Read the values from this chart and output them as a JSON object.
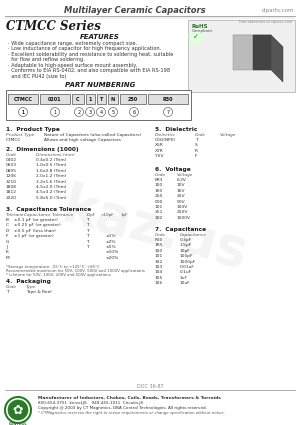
{
  "title": "Multilayer Ceramic Capacitors",
  "website": "cIparts.com",
  "series": "CTMCC Series",
  "features_title": "FEATURES",
  "features": [
    "Wide capacitance range, extremely compact size.",
    "Low inductance of capacitor for high frequency application.",
    "Excellent solderability and resistance to soldering heat, suitable",
    "  for flow and reflow soldering.",
    "Adaptable to high-speed surface mount assembly.",
    "Conforms to EIA RS-0402, and also compatible with EIA RS-198",
    "  and IEC PU42 (size to)"
  ],
  "part_numbering_title": "PART NUMBERING",
  "codes": [
    "CTMCC",
    "0201",
    "C",
    "1",
    "T",
    "N",
    "250",
    "R30"
  ],
  "code_labels": [
    "1",
    "2",
    "3",
    "4",
    "5",
    "6",
    "7"
  ],
  "dim_rows": [
    [
      "0402",
      "0.4x0.2 (Trim)"
    ],
    [
      "0603",
      "1.0x0.5 (Trim)"
    ],
    [
      "0805",
      "1.6x0.8 (Trim)"
    ],
    [
      "1206",
      "2.0x1.2 (Trim)"
    ],
    [
      "1210",
      "3.2x1.6 (Trim)"
    ],
    [
      "1808",
      "4.5x2.0 (Trim)"
    ],
    [
      "1812",
      "4.5x3.2 (Trim)"
    ],
    [
      "2220",
      "5.8x5.0 (Trim)"
    ]
  ],
  "tol_rows": [
    [
      "B",
      "±0.1 pF (or greater)",
      "T",
      ""
    ],
    [
      "C",
      "±0.25 pF (or greater)",
      "T",
      ""
    ],
    [
      "D",
      "±0.5 pF (less than)",
      "T",
      ""
    ],
    [
      "F",
      "±1 pF (or greater)",
      "T",
      "±1%"
    ],
    [
      "G",
      "",
      "T",
      "±2%"
    ],
    [
      "J",
      "",
      "T",
      "±5%"
    ],
    [
      "K",
      "",
      "",
      "±10%"
    ],
    [
      "M",
      "",
      "",
      "±20%"
    ]
  ],
  "tol_note": "*Storage temperature: -55°C to +125°C; +85°C\n  Recommended maximum for 50V, 100V, 500V and 1000V applications\n  * Lifetime for 50V, 100V, 200V and 500V applications",
  "diel_rows": [
    [
      "C0G(NP0)",
      "T"
    ],
    [
      "X5R",
      "S"
    ],
    [
      "X7R",
      "R"
    ],
    [
      "Y5V",
      "F"
    ]
  ],
  "volt_rows": [
    [
      "6R3",
      "6.3V"
    ],
    [
      "100",
      "10V"
    ],
    [
      "160",
      "16V"
    ],
    [
      "250",
      "25V"
    ],
    [
      "500",
      "50V"
    ],
    [
      "101",
      "100V"
    ],
    [
      "251",
      "250V"
    ],
    [
      "102",
      "1000V"
    ]
  ],
  "cap_rows": [
    [
      "R30",
      "0.3pF"
    ],
    [
      "1R5",
      "1.5pF"
    ],
    [
      "100",
      "10pF"
    ],
    [
      "101",
      "100pF"
    ],
    [
      "102",
      "1000pF"
    ],
    [
      "103",
      "0.01uF"
    ],
    [
      "104",
      "0.1uF"
    ],
    [
      "105",
      "1uF"
    ],
    [
      "106",
      "10uF"
    ]
  ],
  "pkg_rows": [
    [
      "T",
      "Tape & Reel"
    ]
  ],
  "footer_doc": "DOC 36-87",
  "footer_logo_color": "#2a7a2a",
  "footer1": "Manufacturer of Inductors, Chokes, Coils, Beads, Transformers & Torroids",
  "footer2": "800-654-3751  kniveLJS    949-455-1011  Circuits.JS",
  "footer3": "Copyright @ 2003 by CT Magnetics, DBA Control Technologies. All rights reserved.",
  "footer4": "* CTMagnetics reserves the right to revise requirements or change specification without notice.",
  "bg": "#ffffff",
  "tc": "#1a1a1a",
  "gc": "#555555"
}
